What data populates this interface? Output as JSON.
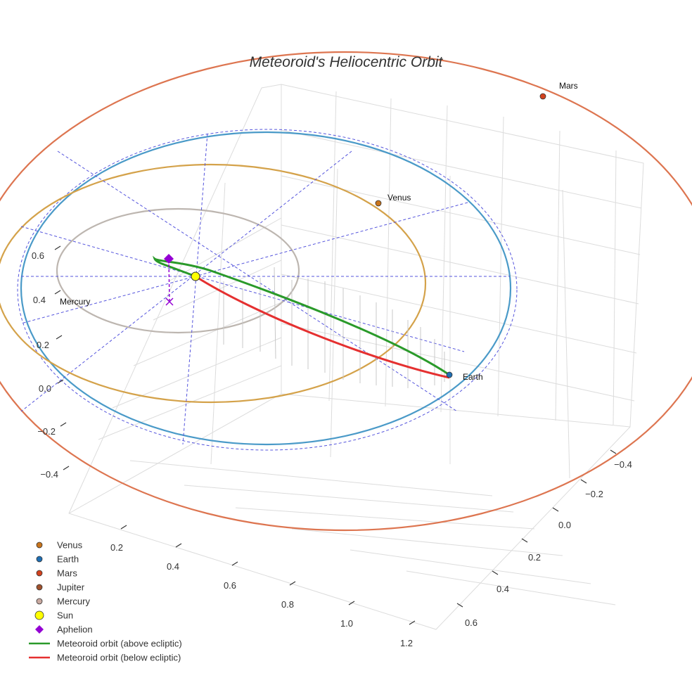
{
  "chart_data": {
    "type": "scatter3d",
    "title": "Meteoroid's Heliocentric Orbit",
    "x_axis_ticks": [
      "0.2",
      "0.4",
      "0.6",
      "0.8",
      "1.0",
      "1.2"
    ],
    "y_axis_ticks": [
      "−0.4",
      "−0.2",
      "0.0",
      "0.2",
      "0.4",
      "0.6"
    ],
    "z_axis_ticks": [
      "−0.4",
      "−0.2",
      "0.0",
      "0.2",
      "0.4",
      "0.6"
    ],
    "planet_labels": [
      "Mars",
      "Venus",
      "Earth",
      "Mercury"
    ],
    "series": [
      {
        "name": "Venus",
        "marker": "circle",
        "color": "#c8741c"
      },
      {
        "name": "Earth",
        "marker": "circle",
        "color": "#1f6fb4"
      },
      {
        "name": "Mars",
        "marker": "circle",
        "color": "#d2421e"
      },
      {
        "name": "Jupiter",
        "marker": "circle",
        "color": "#a0522d"
      },
      {
        "name": "Mercury",
        "marker": "circle",
        "color": "#c9a9a0"
      },
      {
        "name": "Sun",
        "marker": "circle",
        "color": "#ffff00"
      },
      {
        "name": "Aphelion",
        "marker": "diamond",
        "color": "#9400d3"
      },
      {
        "name": "Meteoroid orbit (above ecliptic)",
        "marker": "line",
        "color": "#2a9a2a"
      },
      {
        "name": "Meteoroid orbit (below ecliptic)",
        "marker": "line",
        "color": "#e53030"
      }
    ],
    "orbit_colors": {
      "mercury": "#bdb6b0",
      "venus": "#d4a24a",
      "earth": "#4a9ac8",
      "mars": "#dd7550",
      "projection": "#5555dd"
    }
  }
}
